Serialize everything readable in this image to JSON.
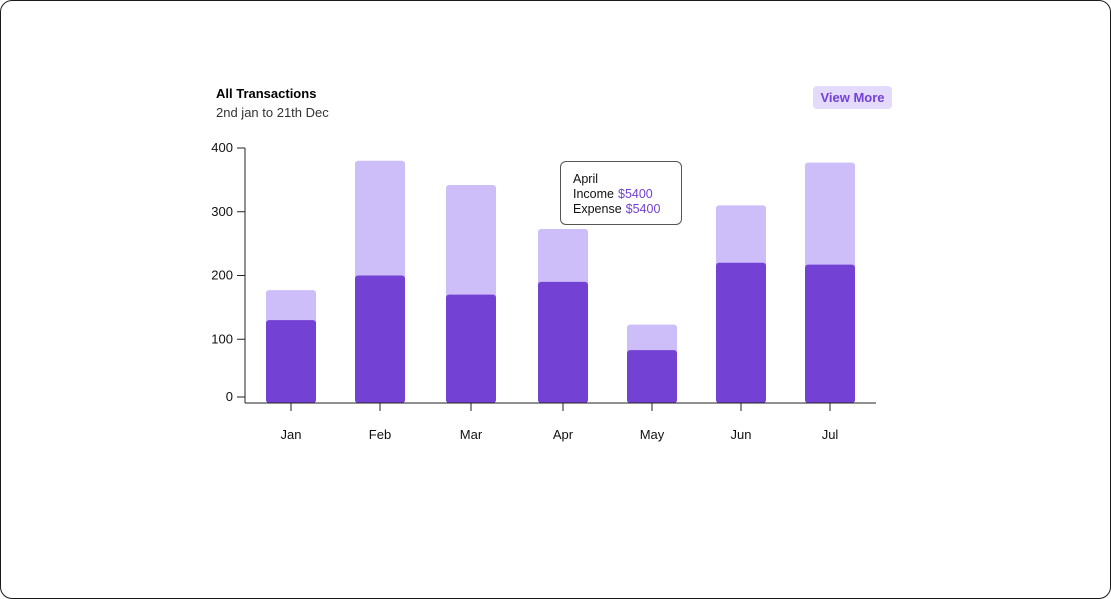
{
  "header": {
    "title": "All Transactions",
    "subtitle": "2nd jan to 21th Dec",
    "view_more_label": "View More"
  },
  "colors": {
    "income_bar": "#7341d3",
    "expense_bar": "#cdbdf9",
    "accent_text": "#7341d3",
    "button_bg": "#e4dafc",
    "axis": "#222222"
  },
  "tooltip": {
    "month": "April",
    "income_label": "Income",
    "income_value": "$5400",
    "expense_label": "Expense",
    "expense_value": "$5400"
  },
  "chart_data": {
    "type": "bar",
    "stacked": true,
    "categories": [
      "Jan",
      "Feb",
      "Mar",
      "Apr",
      "May",
      "Jun",
      "Jul"
    ],
    "y_ticks": [
      0,
      100,
      200,
      300,
      400
    ],
    "ylim": [
      0,
      400
    ],
    "series": [
      {
        "values": [
          130,
          200,
          170,
          190,
          83,
          220,
          217
        ]
      },
      {
        "values": [
          47,
          180,
          172,
          83,
          40,
          90,
          160
        ]
      }
    ],
    "grid": false,
    "legend": "none"
  }
}
